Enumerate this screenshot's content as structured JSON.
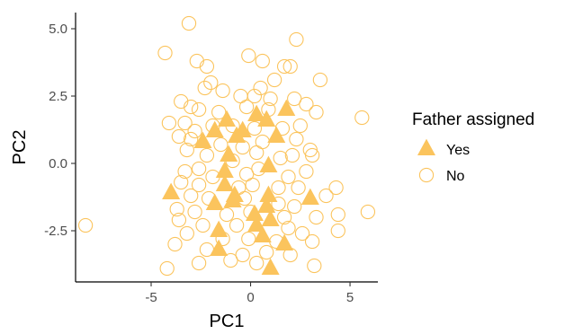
{
  "chart_data": {
    "type": "scatter",
    "xlabel": "PC1",
    "ylabel": "PC2",
    "xlim": [
      -8.8,
      6.4
    ],
    "ylim": [
      -4.4,
      5.6
    ],
    "x_ticks": [
      -5,
      0,
      5
    ],
    "x_tick_labels": [
      "-5",
      "0",
      "5"
    ],
    "y_ticks": [
      -2.5,
      0,
      2.5,
      5
    ],
    "y_tick_labels": [
      "-2.5",
      "0.0",
      "2.5",
      "5.0"
    ],
    "grid": false,
    "legend": {
      "title": "Father assigned",
      "placement": "right",
      "entries": [
        {
          "label": "Yes",
          "shape": "triangle-filled"
        },
        {
          "label": "No",
          "shape": "circle-open"
        }
      ]
    },
    "color": "#FBC45D",
    "series": [
      {
        "name": "Yes",
        "points": [
          [
            -1.2,
            1.6
          ],
          [
            -0.7,
            1.0
          ],
          [
            0.3,
            1.8
          ],
          [
            1.8,
            2.0
          ],
          [
            -1.8,
            1.2
          ],
          [
            -2.4,
            0.8
          ],
          [
            1.3,
            1.0
          ],
          [
            0.8,
            1.6
          ],
          [
            -0.4,
            1.2
          ],
          [
            -1.1,
            0.3
          ],
          [
            0.9,
            -0.1
          ],
          [
            -1.3,
            -0.8
          ],
          [
            -0.8,
            -1.2
          ],
          [
            0.9,
            -1.2
          ],
          [
            -0.9,
            -1.4
          ],
          [
            -1.3,
            -0.3
          ],
          [
            -4.0,
            -1.1
          ],
          [
            3.0,
            -1.3
          ],
          [
            0.8,
            -1.6
          ],
          [
            1.0,
            -2.1
          ],
          [
            0.3,
            -2.3
          ],
          [
            -1.6,
            -2.5
          ],
          [
            0.6,
            -2.7
          ],
          [
            1.7,
            -3.0
          ],
          [
            -1.6,
            -3.2
          ],
          [
            1.0,
            -3.9
          ],
          [
            -1.8,
            -1.5
          ],
          [
            0.2,
            -1.9
          ]
        ]
      },
      {
        "name": "No",
        "points": [
          [
            -3.1,
            5.2
          ],
          [
            2.3,
            4.6
          ],
          [
            -4.3,
            4.1
          ],
          [
            -2.7,
            3.8
          ],
          [
            -0.1,
            4.0
          ],
          [
            0.6,
            3.8
          ],
          [
            1.7,
            3.6
          ],
          [
            2.0,
            3.6
          ],
          [
            1.2,
            3.1
          ],
          [
            3.5,
            3.1
          ],
          [
            -2.2,
            3.6
          ],
          [
            -2.0,
            3.0
          ],
          [
            -2.3,
            2.8
          ],
          [
            -1.4,
            2.7
          ],
          [
            -0.5,
            2.5
          ],
          [
            0.5,
            2.8
          ],
          [
            0.2,
            2.5
          ],
          [
            1.0,
            2.4
          ],
          [
            2.2,
            2.4
          ],
          [
            2.8,
            2.2
          ],
          [
            -3.5,
            2.3
          ],
          [
            -3.0,
            2.1
          ],
          [
            -2.6,
            2.0
          ],
          [
            -1.6,
            1.9
          ],
          [
            -0.2,
            2.1
          ],
          [
            0.9,
            2.0
          ],
          [
            3.3,
            1.9
          ],
          [
            5.6,
            1.7
          ],
          [
            -4.1,
            1.5
          ],
          [
            -3.3,
            1.5
          ],
          [
            -2.8,
            1.2
          ],
          [
            -1.9,
            1.4
          ],
          [
            -0.9,
            1.4
          ],
          [
            0.2,
            1.3
          ],
          [
            1.6,
            1.3
          ],
          [
            2.5,
            1.4
          ],
          [
            -3.6,
            1.0
          ],
          [
            -3.0,
            0.9
          ],
          [
            -1.5,
            0.7
          ],
          [
            -0.4,
            0.6
          ],
          [
            0.6,
            0.8
          ],
          [
            2.3,
            0.9
          ],
          [
            3.0,
            0.5
          ],
          [
            -3.2,
            0.5
          ],
          [
            -2.2,
            0.3
          ],
          [
            -0.9,
            0.1
          ],
          [
            0.3,
            0.4
          ],
          [
            1.5,
            0.2
          ],
          [
            2.1,
            0.3
          ],
          [
            3.1,
            0.3
          ],
          [
            -3.3,
            -0.3
          ],
          [
            -2.6,
            -0.2
          ],
          [
            -1.9,
            -0.5
          ],
          [
            -0.2,
            -0.4
          ],
          [
            0.4,
            -0.2
          ],
          [
            1.9,
            -0.5
          ],
          [
            2.8,
            -0.3
          ],
          [
            -3.5,
            -0.7
          ],
          [
            -2.6,
            -0.8
          ],
          [
            -0.6,
            -0.9
          ],
          [
            0.1,
            -0.8
          ],
          [
            1.4,
            -0.9
          ],
          [
            2.4,
            -0.9
          ],
          [
            4.3,
            -0.9
          ],
          [
            -3.0,
            -1.2
          ],
          [
            -2.1,
            -1.3
          ],
          [
            -0.3,
            -1.3
          ],
          [
            1.4,
            -1.5
          ],
          [
            2.2,
            -1.6
          ],
          [
            3.8,
            -1.2
          ],
          [
            -3.7,
            -1.7
          ],
          [
            -2.8,
            -1.8
          ],
          [
            -1.2,
            -1.9
          ],
          [
            0.0,
            -1.8
          ],
          [
            1.7,
            -2.0
          ],
          [
            3.3,
            -2.0
          ],
          [
            4.4,
            -1.9
          ],
          [
            5.9,
            -1.8
          ],
          [
            -8.3,
            -2.3
          ],
          [
            -3.6,
            -2.1
          ],
          [
            -2.4,
            -2.3
          ],
          [
            -0.7,
            -2.3
          ],
          [
            1.9,
            -2.4
          ],
          [
            2.6,
            -2.6
          ],
          [
            4.4,
            -2.5
          ],
          [
            -3.2,
            -2.6
          ],
          [
            -1.4,
            -2.8
          ],
          [
            -0.1,
            -2.8
          ],
          [
            1.3,
            -2.9
          ],
          [
            3.1,
            -2.9
          ],
          [
            -3.8,
            -3.0
          ],
          [
            -2.2,
            -3.2
          ],
          [
            -0.4,
            -3.4
          ],
          [
            0.8,
            -3.3
          ],
          [
            2.0,
            -3.4
          ],
          [
            -4.2,
            -3.9
          ],
          [
            -2.6,
            -3.7
          ],
          [
            -1.0,
            -3.6
          ],
          [
            0.3,
            -3.7
          ],
          [
            3.2,
            -3.8
          ]
        ]
      }
    ]
  }
}
